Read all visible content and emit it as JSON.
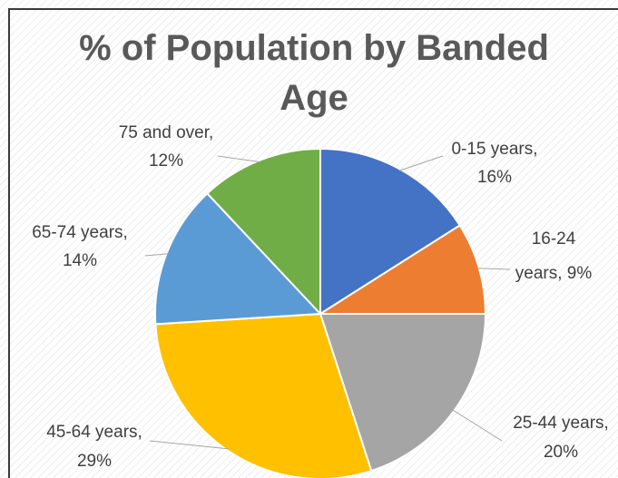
{
  "chart_data": {
    "type": "pie",
    "title": "% of Population by Banded Age",
    "title_lines": [
      "% of Population by Banded",
      "Age"
    ],
    "slices": [
      {
        "category": "0-15 years",
        "value": 16,
        "color": "#4472c4",
        "label_lines": [
          "0-15 years,",
          "16%"
        ]
      },
      {
        "category": "16-24 years",
        "value": 9,
        "color": "#ed7d31",
        "label_lines": [
          "16-24",
          "years, 9%"
        ]
      },
      {
        "category": "25-44 years",
        "value": 20,
        "color": "#a5a5a5",
        "label_lines": [
          "25-44 years,",
          "20%"
        ]
      },
      {
        "category": "45-64 years",
        "value": 29,
        "color": "#ffc000",
        "label_lines": [
          "45-64 years,",
          "29%"
        ]
      },
      {
        "category": "65-74 years",
        "value": 14,
        "color": "#5b9bd5",
        "label_lines": [
          "65-74 years,",
          "14%"
        ]
      },
      {
        "category": "75 and over",
        "value": 12,
        "color": "#70ad47",
        "label_lines": [
          "75 and over,",
          "12%"
        ]
      }
    ],
    "legend": "none",
    "data_labels": "outside with leader lines",
    "background": "diagonal hatch pattern"
  }
}
